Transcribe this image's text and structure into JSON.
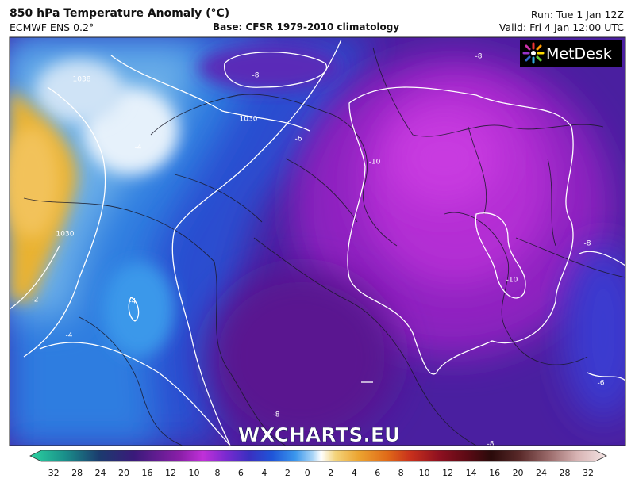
{
  "header": {
    "title": "850 hPa Temperature Anomaly (°C)",
    "model": "ECMWF ENS 0.2°",
    "base": "Base: CFSR 1979-2010 climatology",
    "run": "Run: Tue 1 Jan 12Z",
    "valid": "Valid: Fri 4 Jan 12:00 UTC"
  },
  "logo": "MetDesk",
  "watermark": "WXCHARTS.EU",
  "contour_labels": [
    "-8",
    "-8",
    "1038",
    "1030",
    "-4",
    "-6",
    "-10",
    "1030",
    "-8",
    "-10",
    "-2",
    "-4",
    "-4",
    "-8",
    "-6",
    "-8"
  ],
  "colorbar_labels": [
    "−32",
    "−28",
    "−24",
    "−20",
    "−16",
    "−12",
    "−10",
    "−8",
    "−6",
    "−4",
    "−2",
    "0",
    "2",
    "4",
    "6",
    "8",
    "10",
    "12",
    "14",
    "16",
    "20",
    "24",
    "28",
    "32"
  ]
}
